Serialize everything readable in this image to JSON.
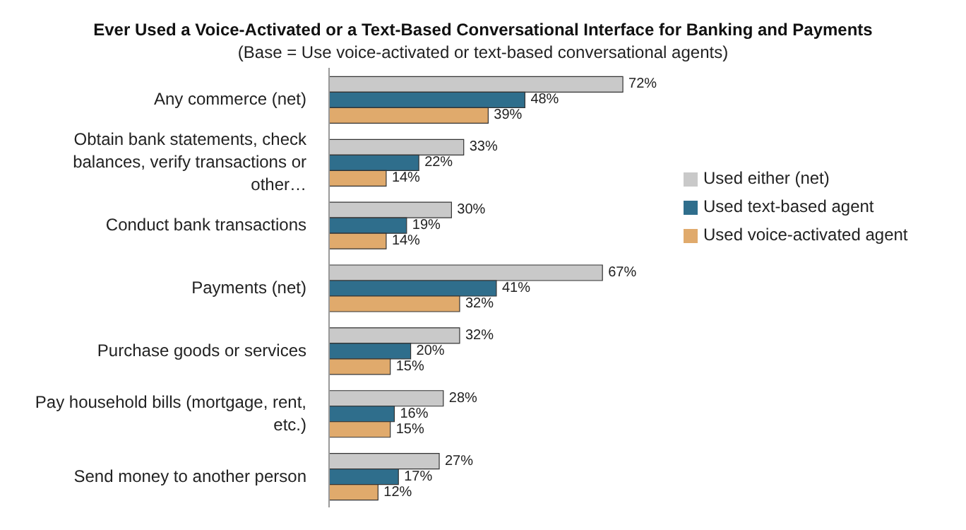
{
  "chart_data": {
    "type": "bar",
    "orientation": "horizontal",
    "title": "Ever Used a Voice-Activated or a Text-Based Conversational Interface for Banking and Payments",
    "subtitle": "(Base = Use voice-activated or text-based conversational agents)",
    "categories": [
      "Any commerce (net)",
      "Obtain bank statements, check balances, verify transactions or other…",
      "Conduct bank transactions",
      "Payments (net)",
      "Purchase goods or services",
      "Pay household bills (mortgage, rent, etc.)",
      "Send money to another person"
    ],
    "series": [
      {
        "name": "Used either (net)",
        "color": "#c9c9c9",
        "values": [
          72,
          33,
          30,
          67,
          32,
          28,
          27
        ],
        "value_labels": [
          "72%",
          "33%",
          "30%",
          "67%",
          "32%",
          "28%",
          "27%"
        ]
      },
      {
        "name": "Used text-based agent",
        "color": "#2f6e8c",
        "values": [
          48,
          22,
          19,
          41,
          20,
          16,
          17
        ],
        "value_labels": [
          "48%",
          "22%",
          "19%",
          "41%",
          "20%",
          "16%",
          "17%"
        ]
      },
      {
        "name": "Used voice-activated agent",
        "color": "#e0aa6c",
        "values": [
          39,
          14,
          14,
          32,
          15,
          15,
          12
        ],
        "value_labels": [
          "39%",
          "14%",
          "14%",
          "32%",
          "15%",
          "15%",
          "12%"
        ]
      }
    ],
    "legend": "right",
    "grid": false
  }
}
